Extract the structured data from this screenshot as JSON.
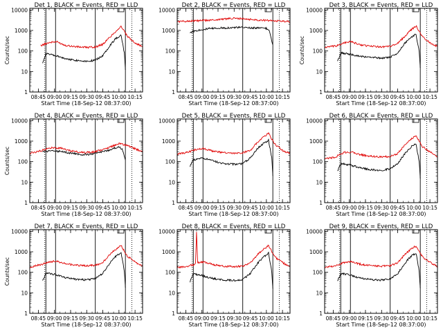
{
  "colors": {
    "events": "#000000",
    "lld": "#e00000",
    "axis": "#000000",
    "background": "#ffffff"
  },
  "chart_data": [
    {
      "type": "line",
      "title": "Det 1, BLACK = Events, RED = LLD",
      "xlabel": "Start Time (18-Sep-12 08:37:00)",
      "ylabel": "Counts/sec",
      "yscale": "log",
      "ylim": [
        1,
        12000
      ],
      "x_tick_labels": [
        "08:45",
        "09:00",
        "09:15",
        "09:30",
        "09:45",
        "10:00",
        "10:15"
      ],
      "y_tick_labels": [
        "1",
        "10",
        "100",
        "1000",
        "10000"
      ],
      "solid_markers": [
        "08:52",
        "09:01",
        "09:38",
        "10:06"
      ],
      "dotted_markers": [
        "08:51",
        "10:12"
      ],
      "series": [
        {
          "name": "Events",
          "color": "#000000",
          "x": [
            "08:49",
            "08:52",
            "09:00",
            "09:10",
            "09:20",
            "09:30",
            "09:38",
            "09:45",
            "09:52",
            "09:57",
            "10:02",
            "10:05",
            "10:06"
          ],
          "y": [
            28,
            75,
            60,
            42,
            35,
            32,
            35,
            60,
            200,
            400,
            600,
            80,
            12
          ]
        },
        {
          "name": "LLD",
          "color": "#e00000",
          "x": [
            "08:47",
            "08:55",
            "09:02",
            "09:10",
            "09:20",
            "09:30",
            "09:38",
            "09:45",
            "09:52",
            "09:57",
            "10:02",
            "10:08",
            "10:15",
            "10:22"
          ],
          "y": [
            180,
            260,
            280,
            190,
            160,
            150,
            155,
            210,
            500,
            900,
            1600,
            500,
            250,
            160
          ]
        }
      ]
    },
    {
      "type": "line",
      "title": "Det 2, BLACK = Events, RED = LLD",
      "xlabel": "Start Time (18-Sep-12 08:37:00)",
      "ylabel": "",
      "yscale": "log",
      "ylim": [
        1,
        12000
      ],
      "x_tick_labels": [
        "08:45",
        "09:00",
        "09:15",
        "09:30",
        "09:45",
        "10:00",
        "10:15"
      ],
      "y_tick_labels": [
        "1",
        "10",
        "100",
        "1000",
        "10000"
      ],
      "solid_markers": [
        "08:52",
        "09:01",
        "09:38",
        "10:06"
      ],
      "dotted_markers": [
        "08:51",
        "10:12"
      ],
      "series": [
        {
          "name": "Events",
          "color": "#000000",
          "x": [
            "08:49",
            "08:55",
            "09:05",
            "09:15",
            "09:25",
            "09:35",
            "09:45",
            "09:55",
            "10:00",
            "10:03",
            "10:06"
          ],
          "y": [
            800,
            1000,
            1200,
            1300,
            1350,
            1400,
            1350,
            1300,
            1250,
            900,
            200
          ]
        },
        {
          "name": "LLD",
          "color": "#e00000",
          "x": [
            "08:37",
            "08:50",
            "09:00",
            "09:10",
            "09:20",
            "09:30",
            "09:40",
            "09:50",
            "10:00",
            "10:10",
            "10:22"
          ],
          "y": [
            2700,
            2900,
            3000,
            3200,
            3600,
            3900,
            3600,
            3300,
            3100,
            2900,
            2700
          ]
        }
      ]
    },
    {
      "type": "line",
      "title": "Det 3, BLACK = Events, RED = LLD",
      "xlabel": "Start Time (18-Sep-12 08:37:00)",
      "ylabel": "Counts/sec",
      "yscale": "log",
      "ylim": [
        1,
        12000
      ],
      "x_tick_labels": [
        "08:45",
        "09:00",
        "09:15",
        "09:30",
        "09:45",
        "10:00",
        "10:15"
      ],
      "y_tick_labels": [
        "1",
        "10",
        "100",
        "1000",
        "10000"
      ],
      "solid_markers": [
        "08:52",
        "09:01",
        "09:38",
        "10:06"
      ],
      "dotted_markers": [
        "08:51",
        "10:12"
      ],
      "series": [
        {
          "name": "Events",
          "color": "#000000",
          "x": [
            "08:49",
            "08:52",
            "09:00",
            "09:10",
            "09:20",
            "09:30",
            "09:38",
            "09:45",
            "09:52",
            "09:57",
            "10:02",
            "10:05",
            "10:06"
          ],
          "y": [
            30,
            80,
            70,
            55,
            48,
            45,
            50,
            80,
            250,
            450,
            650,
            100,
            15
          ]
        },
        {
          "name": "LLD",
          "color": "#e00000",
          "x": [
            "08:37",
            "08:47",
            "08:55",
            "09:02",
            "09:10",
            "09:20",
            "09:30",
            "09:38",
            "09:45",
            "09:52",
            "09:57",
            "10:02",
            "10:08",
            "10:15",
            "10:22"
          ],
          "y": [
            150,
            170,
            250,
            280,
            200,
            170,
            160,
            170,
            230,
            550,
            1000,
            1700,
            500,
            250,
            160
          ]
        }
      ]
    },
    {
      "type": "line",
      "title": "Det 4, BLACK = Events, RED = LLD",
      "xlabel": "Start Time (18-Sep-12 08:37:00)",
      "ylabel": "Counts/sec",
      "yscale": "log",
      "ylim": [
        1,
        12000
      ],
      "x_tick_labels": [
        "08:45",
        "09:00",
        "09:15",
        "09:30",
        "09:45",
        "10:00",
        "10:15"
      ],
      "y_tick_labels": [
        "1",
        "10",
        "100",
        "1000",
        "10000"
      ],
      "solid_markers": [
        "08:52",
        "09:01",
        "09:38",
        "10:06"
      ],
      "dotted_markers": [
        "08:51",
        "10:12"
      ],
      "series": [
        {
          "name": "Events",
          "color": "#000000",
          "x": [
            "08:49",
            "08:55",
            "09:05",
            "09:15",
            "09:25",
            "09:35",
            "09:45",
            "09:55",
            "10:00",
            "10:03",
            "10:06"
          ],
          "y": [
            300,
            330,
            320,
            260,
            220,
            230,
            300,
            430,
            520,
            400,
            120
          ]
        },
        {
          "name": "LLD",
          "color": "#e00000",
          "x": [
            "08:37",
            "08:47",
            "08:55",
            "09:05",
            "09:15",
            "09:25",
            "09:35",
            "09:45",
            "09:55",
            "10:00",
            "10:08",
            "10:15",
            "10:22"
          ],
          "y": [
            260,
            330,
            470,
            460,
            340,
            280,
            290,
            380,
            600,
            750,
            600,
            420,
            300
          ]
        }
      ]
    },
    {
      "type": "line",
      "title": "Det 5, BLACK = Events, RED = LLD",
      "xlabel": "Start Time (18-Sep-12 08:37:00)",
      "ylabel": "",
      "yscale": "log",
      "ylim": [
        1,
        12000
      ],
      "x_tick_labels": [
        "08:45",
        "09:00",
        "09:15",
        "09:30",
        "09:45",
        "10:00",
        "10:15"
      ],
      "y_tick_labels": [
        "1",
        "10",
        "100",
        "1000",
        "10000"
      ],
      "solid_markers": [
        "08:52",
        "09:01",
        "09:38",
        "10:06"
      ],
      "dotted_markers": [
        "08:51",
        "10:12"
      ],
      "series": [
        {
          "name": "Events",
          "color": "#000000",
          "x": [
            "08:49",
            "08:52",
            "09:00",
            "09:10",
            "09:20",
            "09:30",
            "09:38",
            "09:45",
            "09:52",
            "09:57",
            "10:02",
            "10:05",
            "10:06"
          ],
          "y": [
            60,
            120,
            150,
            110,
            80,
            75,
            80,
            150,
            450,
            750,
            1100,
            150,
            20
          ]
        },
        {
          "name": "LLD",
          "color": "#e00000",
          "x": [
            "08:37",
            "08:47",
            "08:55",
            "09:02",
            "09:10",
            "09:20",
            "09:30",
            "09:38",
            "09:45",
            "09:52",
            "09:57",
            "10:02",
            "10:08",
            "10:15",
            "10:22"
          ],
          "y": [
            230,
            290,
            400,
            430,
            330,
            270,
            250,
            270,
            350,
            900,
            1500,
            2400,
            700,
            350,
            250
          ]
        }
      ]
    },
    {
      "type": "line",
      "title": "Det 6, BLACK = Events, RED = LLD",
      "xlabel": "Start Time (18-Sep-12 08:37:00)",
      "ylabel": "",
      "yscale": "log",
      "ylim": [
        1,
        12000
      ],
      "x_tick_labels": [
        "08:45",
        "09:00",
        "09:15",
        "09:30",
        "09:45",
        "10:00",
        "10:15"
      ],
      "y_tick_labels": [
        "1",
        "10",
        "100",
        "1000",
        "10000"
      ],
      "solid_markers": [
        "08:52",
        "09:01",
        "09:38",
        "10:06"
      ],
      "dotted_markers": [
        "08:51",
        "10:12"
      ],
      "series": [
        {
          "name": "Events",
          "color": "#000000",
          "x": [
            "08:49",
            "08:52",
            "09:00",
            "09:10",
            "09:20",
            "09:30",
            "09:38",
            "09:45",
            "09:52",
            "09:57",
            "10:02",
            "10:05",
            "10:06"
          ],
          "y": [
            35,
            80,
            70,
            50,
            40,
            38,
            45,
            80,
            260,
            500,
            750,
            100,
            15
          ]
        },
        {
          "name": "LLD",
          "color": "#e00000",
          "x": [
            "08:37",
            "08:47",
            "08:55",
            "09:02",
            "09:10",
            "09:20",
            "09:30",
            "09:38",
            "09:45",
            "09:52",
            "09:57",
            "10:02",
            "10:08",
            "10:15",
            "10:22"
          ],
          "y": [
            130,
            170,
            280,
            300,
            220,
            180,
            170,
            180,
            250,
            650,
            1200,
            1900,
            550,
            300,
            180
          ]
        }
      ]
    },
    {
      "type": "line",
      "title": "Det 7, BLACK = Events, RED = LLD",
      "xlabel": "Start Time (18-Sep-12 08:37:00)",
      "ylabel": "Counts/sec",
      "yscale": "log",
      "ylim": [
        1,
        12000
      ],
      "x_tick_labels": [
        "08:45",
        "09:00",
        "09:15",
        "09:30",
        "09:45",
        "10:00",
        "10:15"
      ],
      "y_tick_labels": [
        "1",
        "10",
        "100",
        "1000",
        "10000"
      ],
      "solid_markers": [
        "08:52",
        "09:01",
        "09:38",
        "10:06"
      ],
      "dotted_markers": [
        "08:51",
        "10:12"
      ],
      "series": [
        {
          "name": "Events",
          "color": "#000000",
          "x": [
            "08:49",
            "08:52",
            "09:00",
            "09:10",
            "09:20",
            "09:30",
            "09:38",
            "09:45",
            "09:52",
            "09:57",
            "10:02",
            "10:05",
            "10:06"
          ],
          "y": [
            40,
            90,
            80,
            55,
            45,
            42,
            50,
            90,
            300,
            600,
            900,
            120,
            18
          ]
        },
        {
          "name": "LLD",
          "color": "#e00000",
          "x": [
            "08:37",
            "08:47",
            "08:55",
            "09:02",
            "09:10",
            "09:20",
            "09:30",
            "09:38",
            "09:45",
            "09:52",
            "09:57",
            "10:02",
            "10:08",
            "10:15",
            "10:22"
          ],
          "y": [
            180,
            230,
            330,
            350,
            260,
            220,
            210,
            220,
            300,
            800,
            1300,
            2000,
            600,
            320,
            200
          ]
        }
      ]
    },
    {
      "type": "line",
      "title": "Det 8, BLACK = Events, RED = LLD",
      "xlabel": "Start Time (18-Sep-12 08:37:00)",
      "ylabel": "",
      "yscale": "log",
      "ylim": [
        1,
        12000
      ],
      "x_tick_labels": [
        "08:45",
        "09:00",
        "09:15",
        "09:30",
        "09:45",
        "10:00",
        "10:15"
      ],
      "y_tick_labels": [
        "1",
        "10",
        "100",
        "1000",
        "10000"
      ],
      "solid_markers": [
        "08:52",
        "09:01",
        "09:38",
        "10:06"
      ],
      "dotted_markers": [
        "08:51",
        "10:12"
      ],
      "series": [
        {
          "name": "Events",
          "color": "#000000",
          "x": [
            "08:49",
            "08:52",
            "09:00",
            "09:10",
            "09:20",
            "09:30",
            "09:38",
            "09:45",
            "09:52",
            "09:57",
            "10:02",
            "10:05",
            "10:06"
          ],
          "y": [
            35,
            85,
            70,
            50,
            42,
            40,
            45,
            85,
            280,
            550,
            850,
            110,
            16
          ]
        },
        {
          "name": "LLD",
          "color": "#e00000",
          "x": [
            "08:37",
            "08:47",
            "08:54",
            "08:55",
            "08:56",
            "09:02",
            "09:10",
            "09:20",
            "09:30",
            "09:38",
            "09:45",
            "09:52",
            "09:57",
            "10:02",
            "10:08",
            "10:15",
            "10:22"
          ],
          "y": [
            170,
            200,
            250,
            9500,
            300,
            320,
            240,
            200,
            190,
            200,
            280,
            750,
            1300,
            2000,
            550,
            300,
            180
          ]
        }
      ]
    },
    {
      "type": "line",
      "title": "Det 9, BLACK = Events, RED = LLD",
      "xlabel": "Start Time (18-Sep-12 08:37:00)",
      "ylabel": "",
      "yscale": "log",
      "ylim": [
        1,
        12000
      ],
      "x_tick_labels": [
        "08:45",
        "09:00",
        "09:15",
        "09:30",
        "09:45",
        "10:00",
        "10:15"
      ],
      "y_tick_labels": [
        "1",
        "10",
        "100",
        "1000",
        "10000"
      ],
      "solid_markers": [
        "08:52",
        "09:01",
        "09:38",
        "10:06"
      ],
      "dotted_markers": [
        "08:51",
        "10:12"
      ],
      "series": [
        {
          "name": "Events",
          "color": "#000000",
          "x": [
            "08:49",
            "08:52",
            "09:00",
            "09:10",
            "09:20",
            "09:30",
            "09:38",
            "09:45",
            "09:52",
            "09:57",
            "10:02",
            "10:05",
            "10:06"
          ],
          "y": [
            38,
            88,
            75,
            52,
            44,
            42,
            48,
            88,
            290,
            580,
            880,
            115,
            17
          ]
        },
        {
          "name": "LLD",
          "color": "#e00000",
          "x": [
            "08:37",
            "08:47",
            "08:55",
            "09:02",
            "09:10",
            "09:20",
            "09:30",
            "09:38",
            "09:45",
            "09:52",
            "09:57",
            "10:02",
            "10:08",
            "10:15",
            "10:22"
          ],
          "y": [
            170,
            210,
            300,
            330,
            250,
            210,
            200,
            210,
            290,
            780,
            1300,
            1950,
            560,
            310,
            190
          ]
        }
      ]
    }
  ]
}
